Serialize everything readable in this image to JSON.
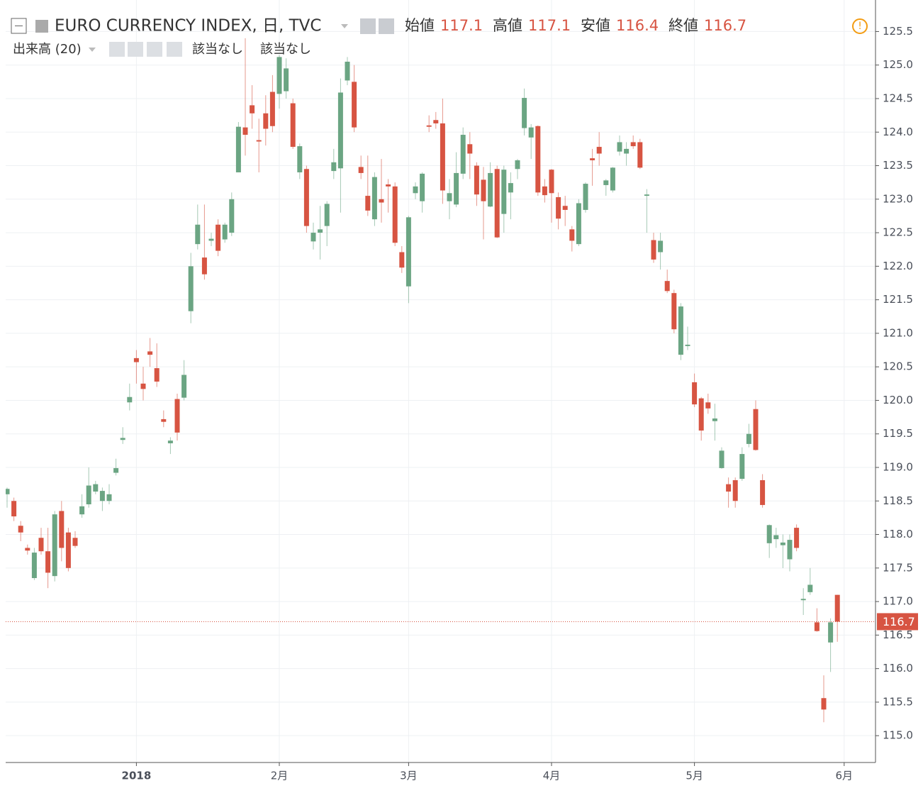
{
  "chart_data": {
    "type": "candlestick",
    "title": "EURO CURRENCY INDEX, 日, TVC",
    "ohlc_labels": [
      "始値",
      "高値",
      "安値",
      "終値"
    ],
    "volume_label": "出来高 (20)",
    "volume_values": [
      "該当なし",
      "該当なし"
    ],
    "up_color": "#6ba583",
    "down_color": "#d75442",
    "ylim": [
      114.6,
      125.97
    ],
    "yticks": [
      {
        "value": 115,
        "label": "115.0"
      },
      {
        "value": 115.5,
        "label": "115.5"
      },
      {
        "value": 116,
        "label": "116.0"
      },
      {
        "value": 116.5,
        "label": "116.5"
      },
      {
        "value": 117,
        "label": "117.0"
      },
      {
        "value": 117.5,
        "label": "117.5"
      },
      {
        "value": 118,
        "label": "118.0"
      },
      {
        "value": 118.5,
        "label": "118.5"
      },
      {
        "value": 119,
        "label": "119.0"
      },
      {
        "value": 119.5,
        "label": "119.5"
      },
      {
        "value": 120,
        "label": "120.0"
      },
      {
        "value": 120.5,
        "label": "120.5"
      },
      {
        "value": 121,
        "label": "121.0"
      },
      {
        "value": 121.5,
        "label": "121.5"
      },
      {
        "value": 122,
        "label": "122.0"
      },
      {
        "value": 122.5,
        "label": "122.5"
      },
      {
        "value": 123,
        "label": "123.0"
      },
      {
        "value": 123.5,
        "label": "123.5"
      },
      {
        "value": 124,
        "label": "124.0"
      },
      {
        "value": 124.5,
        "label": "124.5"
      },
      {
        "value": 125,
        "label": "125.0"
      },
      {
        "value": 125.5,
        "label": "125.5"
      }
    ],
    "grid": true,
    "categories": [
      null,
      null,
      null,
      null,
      null,
      null,
      null,
      null,
      null,
      null,
      null,
      null,
      null,
      null,
      null,
      null,
      null,
      null,
      null,
      "2018",
      null,
      null,
      null,
      null,
      null,
      null,
      null,
      null,
      null,
      null,
      null,
      null,
      null,
      null,
      null,
      null,
      null,
      null,
      null,
      null,
      "2月",
      null,
      null,
      null,
      null,
      null,
      null,
      null,
      null,
      null,
      null,
      null,
      null,
      null,
      null,
      null,
      null,
      null,
      null,
      "3月",
      null,
      null,
      null,
      null,
      null,
      null,
      null,
      null,
      null,
      null,
      null,
      null,
      null,
      null,
      null,
      null,
      null,
      null,
      null,
      null,
      "4月",
      null,
      null,
      null,
      null,
      null,
      null,
      null,
      null,
      null,
      null,
      null,
      null,
      null,
      null,
      null,
      null,
      null,
      null,
      null,
      null,
      "5月",
      null,
      null,
      null,
      null,
      null,
      null,
      null,
      null,
      null,
      null,
      null,
      null,
      null,
      null,
      null,
      null,
      null,
      null,
      null,
      null,
      null,
      "6月"
    ],
    "candles": [
      [
        118.6,
        118.7,
        118.4,
        118.68
      ],
      [
        118.5,
        118.55,
        118.2,
        118.27
      ],
      [
        118.13,
        118.2,
        117.9,
        118.03
      ],
      [
        117.8,
        117.85,
        117.7,
        117.76
      ],
      [
        117.35,
        117.8,
        117.32,
        117.73
      ],
      [
        117.95,
        118.1,
        117.7,
        117.75
      ],
      [
        117.75,
        118.1,
        117.2,
        117.43
      ],
      [
        117.38,
        118.35,
        117.3,
        118.3
      ],
      [
        118.35,
        118.5,
        117.6,
        117.8
      ],
      [
        118.03,
        118.1,
        117.45,
        117.5
      ],
      [
        117.95,
        118.05,
        117.8,
        117.83
      ],
      [
        118.3,
        118.6,
        118.25,
        118.42
      ],
      [
        118.45,
        119.0,
        118.4,
        118.73
      ],
      [
        118.64,
        118.8,
        118.6,
        118.75
      ],
      [
        118.5,
        118.7,
        118.35,
        118.65
      ],
      [
        118.5,
        118.75,
        118.45,
        118.6
      ],
      [
        118.92,
        119.13,
        118.88,
        118.99
      ],
      [
        119.41,
        119.6,
        119.35,
        119.44
      ],
      [
        119.97,
        120.25,
        119.85,
        120.05
      ],
      [
        120.63,
        120.75,
        120.25,
        120.57
      ],
      [
        120.25,
        120.5,
        120.0,
        120.17
      ],
      [
        120.73,
        120.93,
        120.5,
        120.68
      ],
      [
        120.48,
        120.85,
        120.2,
        120.28
      ],
      [
        119.72,
        119.85,
        119.6,
        119.68
      ],
      [
        119.36,
        119.45,
        119.2,
        119.4
      ],
      [
        120.02,
        120.1,
        119.4,
        119.52
      ],
      [
        120.04,
        120.6,
        120.0,
        120.38
      ],
      [
        121.33,
        122.2,
        121.15,
        122.0
      ],
      [
        122.33,
        122.92,
        122.25,
        122.62
      ],
      [
        122.13,
        122.92,
        121.8,
        121.88
      ],
      [
        122.38,
        122.5,
        122.3,
        122.41
      ],
      [
        122.62,
        122.7,
        122.15,
        122.23
      ],
      [
        122.4,
        122.65,
        122.35,
        122.62
      ],
      [
        122.5,
        123.1,
        122.45,
        123.0
      ],
      [
        123.4,
        124.15,
        123.4,
        124.08
      ],
      [
        124.07,
        125.4,
        123.65,
        123.96
      ],
      [
        124.4,
        124.7,
        124.05,
        124.28
      ],
      [
        123.88,
        124.2,
        123.4,
        123.86
      ],
      [
        124.28,
        124.55,
        123.8,
        124.05
      ],
      [
        124.6,
        124.85,
        124.0,
        124.09
      ],
      [
        124.57,
        125.15,
        124.35,
        125.12
      ],
      [
        124.61,
        125.1,
        124.5,
        124.95
      ],
      [
        124.43,
        124.5,
        123.75,
        123.78
      ],
      [
        123.4,
        123.83,
        123.3,
        123.79
      ],
      [
        123.45,
        123.5,
        122.5,
        122.6
      ],
      [
        122.37,
        122.65,
        122.25,
        122.5
      ],
      [
        122.5,
        122.9,
        122.1,
        122.55
      ],
      [
        122.6,
        122.97,
        122.3,
        122.93
      ],
      [
        123.42,
        123.75,
        123.3,
        123.55
      ],
      [
        123.46,
        124.8,
        122.8,
        124.59
      ],
      [
        124.77,
        125.12,
        124.7,
        125.05
      ],
      [
        124.75,
        125.0,
        124.0,
        124.07
      ],
      [
        123.48,
        123.65,
        123.3,
        123.39
      ],
      [
        123.05,
        123.65,
        122.75,
        122.83
      ],
      [
        122.7,
        123.4,
        122.6,
        123.33
      ],
      [
        123.0,
        123.6,
        122.65,
        122.95
      ],
      [
        123.22,
        123.3,
        122.8,
        123.19
      ],
      [
        123.19,
        123.25,
        122.3,
        122.35
      ],
      [
        122.21,
        122.3,
        121.9,
        121.98
      ],
      [
        121.7,
        122.75,
        121.45,
        122.73
      ],
      [
        123.09,
        123.25,
        123.0,
        123.19
      ],
      [
        122.97,
        123.4,
        122.8,
        123.38
      ],
      [
        124.1,
        124.25,
        124.0,
        124.08
      ],
      [
        124.18,
        124.3,
        124.05,
        124.13
      ],
      [
        124.13,
        124.5,
        122.93,
        123.13
      ],
      [
        122.97,
        123.3,
        122.7,
        123.09
      ],
      [
        122.92,
        123.7,
        122.88,
        123.39
      ],
      [
        123.38,
        124.07,
        123.3,
        123.96
      ],
      [
        123.82,
        124.0,
        123.3,
        123.68
      ],
      [
        123.5,
        123.55,
        122.9,
        123.07
      ],
      [
        123.29,
        123.48,
        122.4,
        122.97
      ],
      [
        122.89,
        123.55,
        122.88,
        123.39
      ],
      [
        123.45,
        123.5,
        122.42,
        122.43
      ],
      [
        122.78,
        123.5,
        122.5,
        123.44
      ],
      [
        123.1,
        123.4,
        122.7,
        123.24
      ],
      [
        123.45,
        123.6,
        123.3,
        123.58
      ],
      [
        124.06,
        124.65,
        123.95,
        124.51
      ],
      [
        123.92,
        124.12,
        123.6,
        124.07
      ],
      [
        124.09,
        124.1,
        123.05,
        123.1
      ],
      [
        123.19,
        123.3,
        122.95,
        123.06
      ],
      [
        123.44,
        123.45,
        122.65,
        123.09
      ],
      [
        123.03,
        123.1,
        122.55,
        122.71
      ],
      [
        122.9,
        123.05,
        122.6,
        122.84
      ],
      [
        122.55,
        122.6,
        122.22,
        122.38
      ],
      [
        122.33,
        123.0,
        122.3,
        122.94
      ],
      [
        122.84,
        123.25,
        122.8,
        123.23
      ],
      [
        123.61,
        123.75,
        123.2,
        123.58
      ],
      [
        123.78,
        124.0,
        123.5,
        123.68
      ],
      [
        123.21,
        123.3,
        123.05,
        123.28
      ],
      [
        123.13,
        123.48,
        123.1,
        123.47
      ],
      [
        123.71,
        123.95,
        123.65,
        123.85
      ],
      [
        123.68,
        123.85,
        123.5,
        123.75
      ],
      [
        123.85,
        123.95,
        123.75,
        123.79
      ],
      [
        123.85,
        123.9,
        123.45,
        123.47
      ],
      [
        123.05,
        123.15,
        122.5,
        123.07
      ],
      [
        122.39,
        122.5,
        122.05,
        122.1
      ],
      [
        122.21,
        122.5,
        121.95,
        122.38
      ],
      [
        121.78,
        121.95,
        121.6,
        121.63
      ],
      [
        121.6,
        121.65,
        121.0,
        121.06
      ],
      [
        120.68,
        121.45,
        120.6,
        121.4
      ],
      [
        120.81,
        121.1,
        120.75,
        120.83
      ],
      [
        120.27,
        120.4,
        119.9,
        119.94
      ],
      [
        120.03,
        120.05,
        119.4,
        119.55
      ],
      [
        119.97,
        120.1,
        119.8,
        119.88
      ],
      [
        119.69,
        119.95,
        119.4,
        119.73
      ],
      [
        118.99,
        119.3,
        118.98,
        119.25
      ],
      [
        118.75,
        118.85,
        118.4,
        118.64
      ],
      [
        118.81,
        118.85,
        118.4,
        118.5
      ],
      [
        118.83,
        119.3,
        118.8,
        119.2
      ],
      [
        119.35,
        119.65,
        119.3,
        119.5
      ],
      [
        119.87,
        120.0,
        119.25,
        119.26
      ],
      [
        118.81,
        118.9,
        118.4,
        118.44
      ],
      [
        117.87,
        118.15,
        117.65,
        118.14
      ],
      [
        117.93,
        118.1,
        117.8,
        117.99
      ],
      [
        117.84,
        118.0,
        117.5,
        117.88
      ],
      [
        117.63,
        118.0,
        117.45,
        117.92
      ],
      [
        118.1,
        118.15,
        117.75,
        117.8
      ],
      [
        117.02,
        117.2,
        116.8,
        117.04
      ],
      [
        117.14,
        117.5,
        117.1,
        117.25
      ],
      [
        116.69,
        116.9,
        116.55,
        116.56
      ],
      [
        115.56,
        115.9,
        115.2,
        115.39
      ],
      [
        116.39,
        116.75,
        115.95,
        116.69
      ],
      [
        117.1,
        117.1,
        116.4,
        116.7
      ],
      null
    ]
  }
}
